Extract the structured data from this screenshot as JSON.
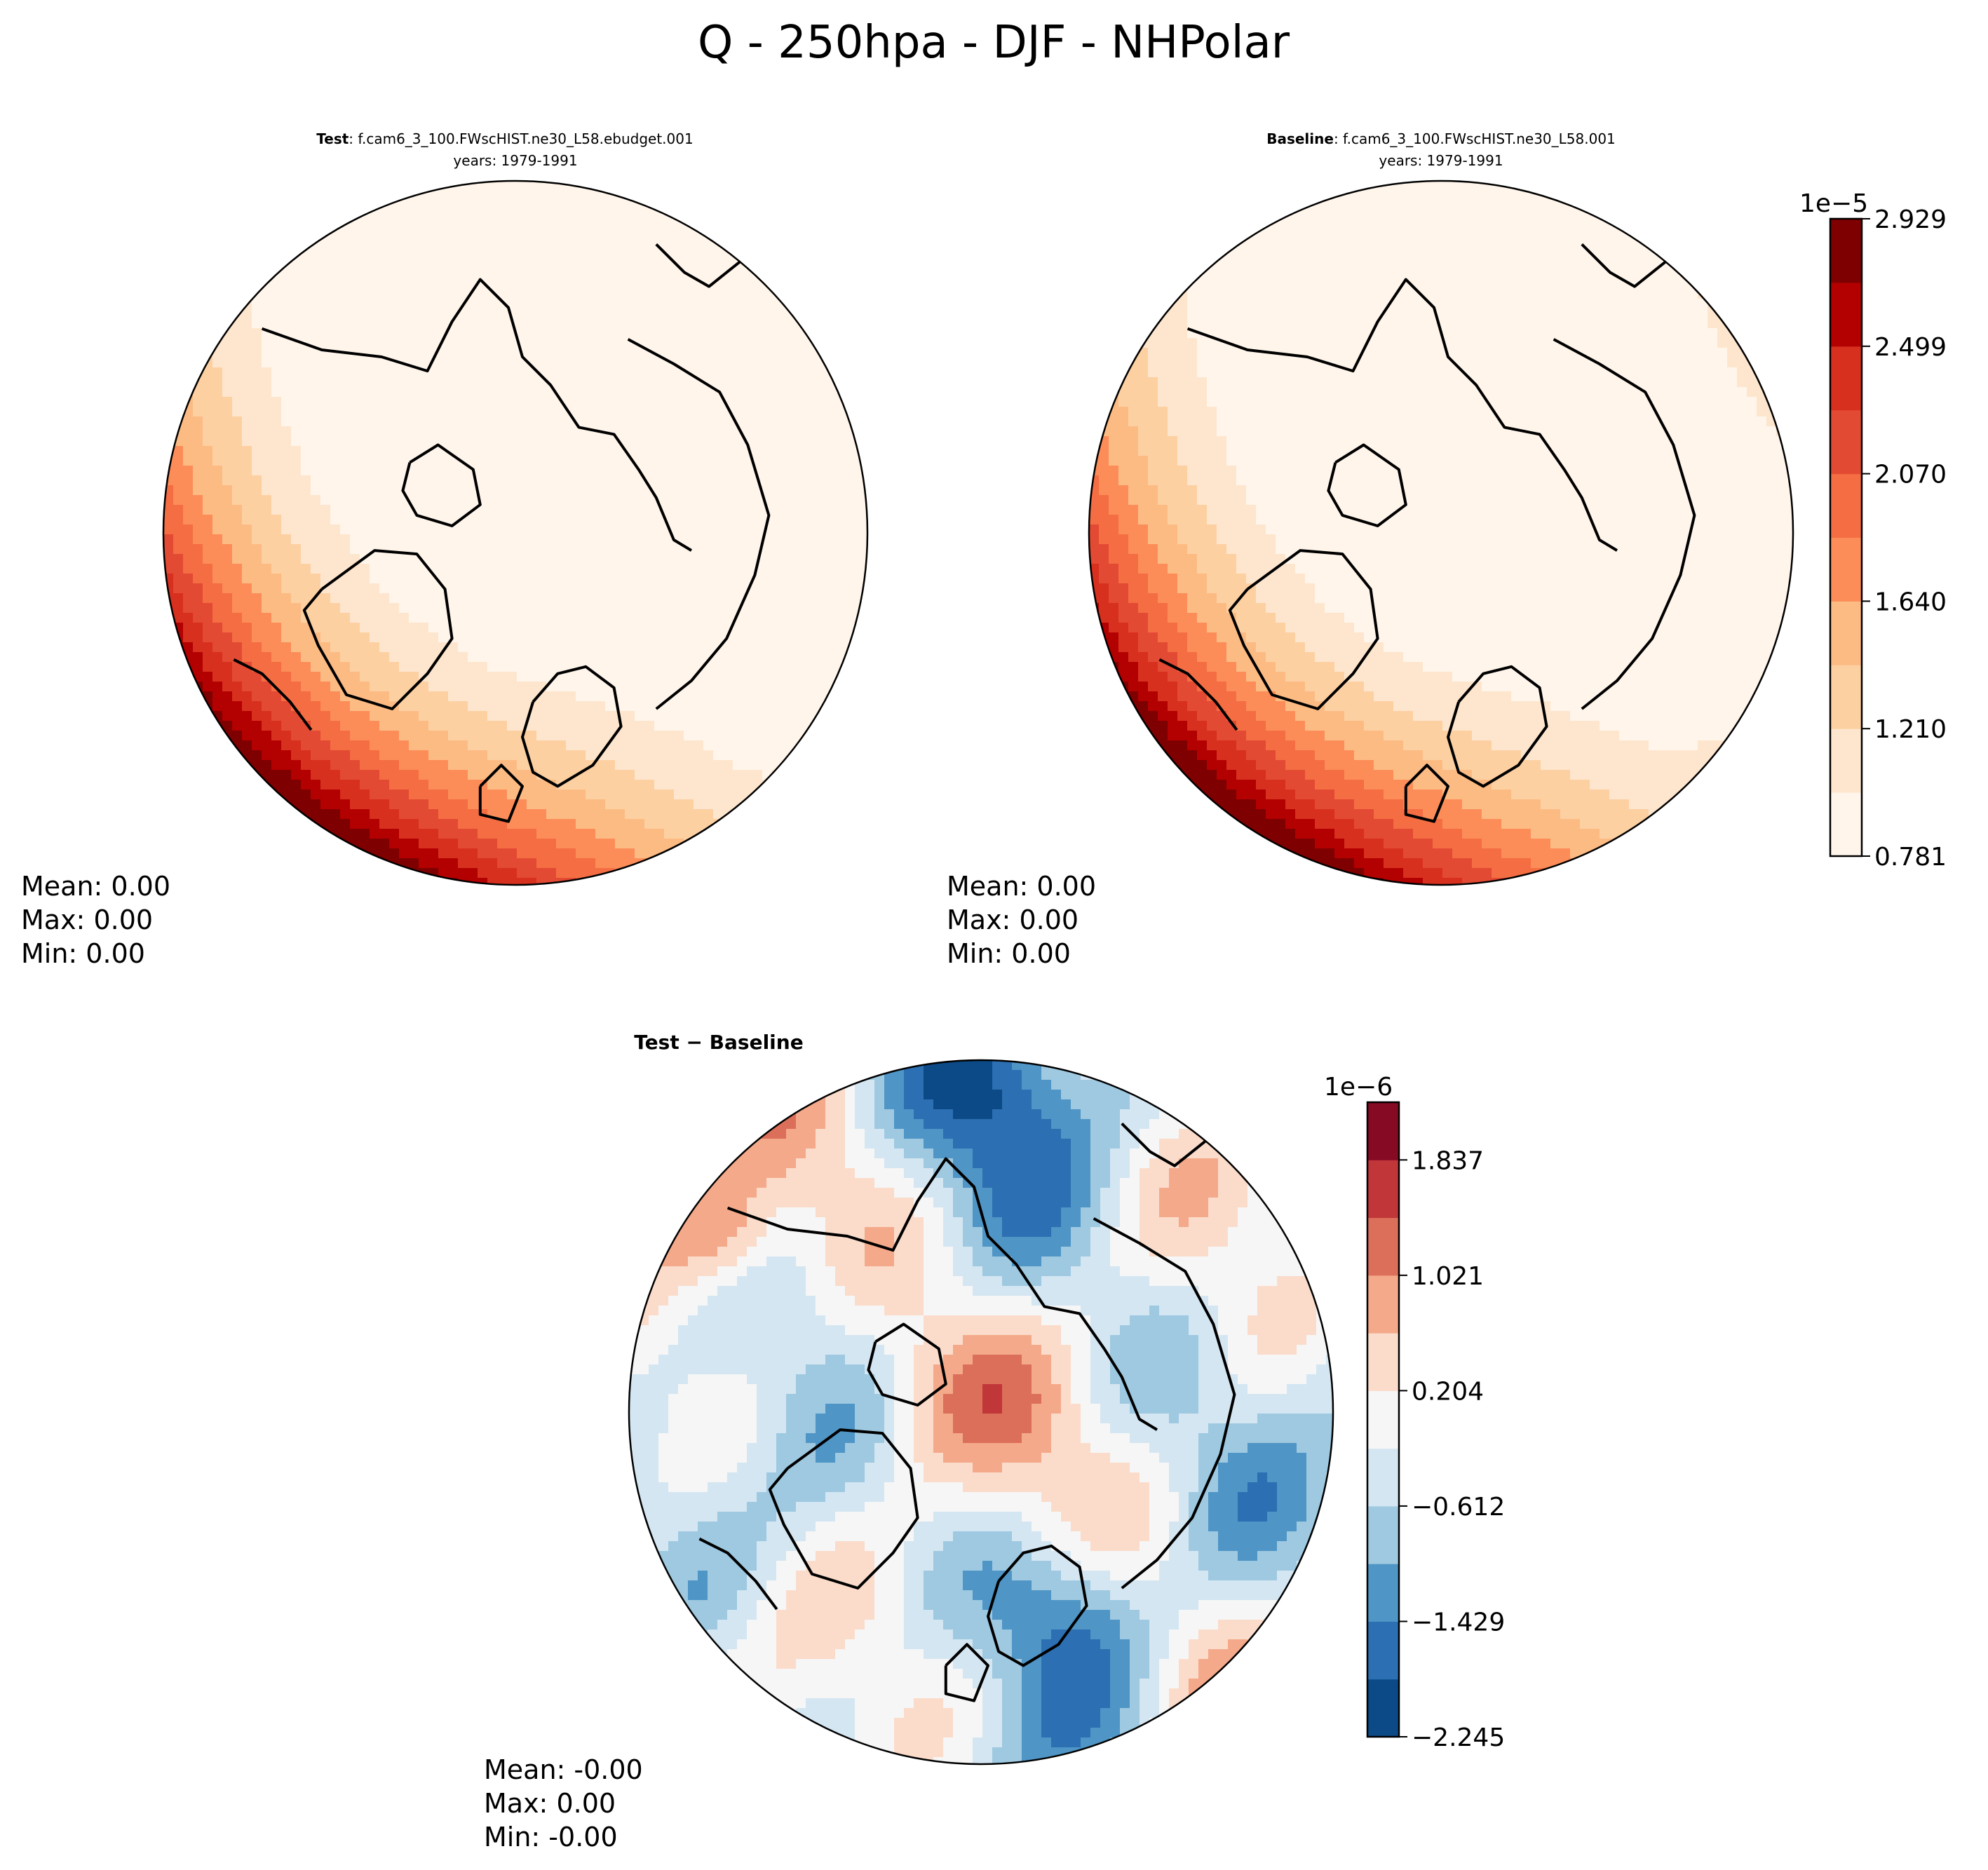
{
  "figure": {
    "title": "Q - 250hpa - DJF - NHPolar"
  },
  "panels": [
    {
      "id": "test",
      "title_bold": "Test",
      "title_rest": ": f.cam6_3_100.FWscHIST.ne30_L58.ebudget.001",
      "subtitle": "years: 1979-1991",
      "stats": [
        "Mean:  0.00",
        "Max:  0.00",
        "Min:  0.00"
      ],
      "field": "test"
    },
    {
      "id": "baseline",
      "title_bold": "Baseline",
      "title_rest": ": f.cam6_3_100.FWscHIST.ne30_L58.001",
      "subtitle": "years: 1979-1991",
      "stats": [
        "Mean:  0.00",
        "Max:  0.00",
        "Min:  0.00"
      ],
      "field": "baseline"
    },
    {
      "id": "diff",
      "title_bold": "Test − Baseline",
      "title_rest": "",
      "subtitle": "",
      "stats": [
        "Mean: -0.00",
        "Max:  0.00",
        "Min: -0.00"
      ],
      "field": "diff"
    }
  ],
  "colorbars": [
    {
      "id": "main",
      "exponent": "1e−5",
      "tick_labels": [
        "0.781",
        "1.210",
        "1.640",
        "2.070",
        "2.499",
        "2.929"
      ],
      "colors": [
        "#fff5eb",
        "#fee6ce",
        "#fdd0a2",
        "#fdbb84",
        "#fc8d59",
        "#f46d43",
        "#e34a33",
        "#d7301f",
        "#b30000",
        "#7f0000"
      ],
      "levels": 11
    },
    {
      "id": "diff",
      "exponent": "1e−6",
      "tick_labels": [
        "−2.245",
        "−1.429",
        "−0.612",
        "0.204",
        "1.021",
        "1.837"
      ],
      "colors": [
        "#0b4a86",
        "#2c6fb2",
        "#4f95c6",
        "#9ec9e1",
        "#d4e6f2",
        "#f6f6f6",
        "#fbdccb",
        "#f4a98a",
        "#dc6f5a",
        "#c13639",
        "#870a24"
      ],
      "levels": 12
    }
  ]
}
